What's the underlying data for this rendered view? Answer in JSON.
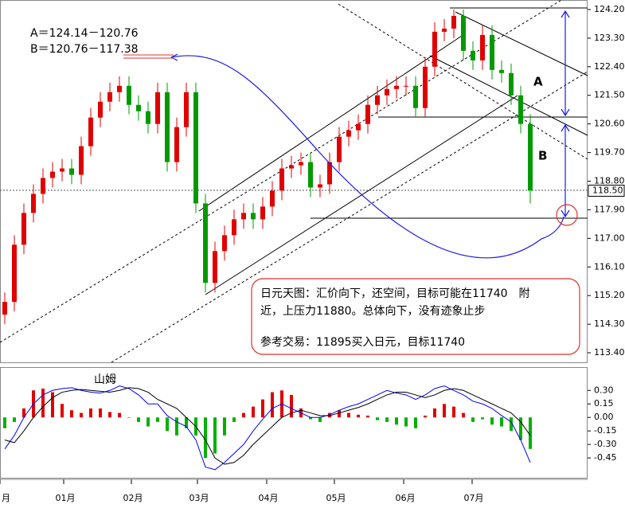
{
  "chart_data": [
    {
      "type": "candlestick",
      "up_color": "#e00000",
      "down_color": "#009a00",
      "open": [
        114.6,
        115.0,
        116.8,
        117.8,
        118.4,
        118.9,
        119.1,
        119.2,
        119.0,
        119.9,
        120.8,
        121.3,
        121.6,
        121.8,
        121.2,
        121.0,
        120.6,
        121.6,
        119.4,
        120.5,
        121.6,
        118.1,
        115.6,
        116.6,
        117.1,
        117.6,
        117.8,
        117.6,
        118.0,
        118.5,
        119.2,
        119.3,
        119.4,
        118.6,
        118.7,
        119.4,
        120.2,
        120.4,
        120.6,
        121.2,
        121.5,
        121.7,
        121.8,
        121.8,
        121.1,
        122.4,
        123.5,
        123.6,
        124.0,
        122.9,
        122.6,
        123.4,
        122.3,
        122.2,
        121.5,
        120.6
      ],
      "high": [
        115.3,
        117.1,
        118.1,
        118.7,
        119.2,
        119.4,
        119.5,
        119.5,
        120.2,
        121.1,
        121.6,
        121.9,
        122.1,
        122.1,
        121.5,
        121.3,
        121.9,
        121.9,
        120.8,
        121.9,
        121.9,
        118.4,
        116.9,
        117.4,
        117.9,
        118.1,
        118.1,
        118.3,
        118.8,
        119.5,
        119.6,
        119.7,
        119.7,
        119.0,
        119.7,
        120.5,
        120.7,
        120.9,
        121.5,
        121.8,
        122.0,
        122.1,
        122.1,
        122.1,
        122.7,
        123.8,
        123.9,
        124.2,
        124.2,
        123.2,
        123.7,
        123.7,
        122.6,
        122.5,
        121.8,
        120.9
      ],
      "low": [
        114.3,
        114.7,
        116.5,
        117.5,
        118.1,
        118.6,
        118.8,
        118.7,
        118.7,
        119.6,
        120.5,
        121.0,
        121.3,
        120.9,
        120.7,
        120.3,
        120.3,
        119.1,
        119.1,
        120.2,
        117.8,
        115.3,
        115.3,
        116.3,
        116.8,
        117.3,
        117.3,
        117.3,
        117.7,
        118.2,
        118.9,
        119.0,
        118.3,
        118.3,
        118.4,
        119.1,
        119.9,
        120.1,
        120.3,
        120.9,
        121.2,
        121.4,
        121.5,
        120.8,
        120.8,
        122.1,
        123.2,
        123.3,
        122.6,
        122.3,
        122.3,
        122.0,
        121.9,
        121.2,
        120.3,
        118.1
      ],
      "close": [
        115.0,
        116.8,
        117.8,
        118.4,
        118.9,
        119.1,
        119.2,
        119.0,
        119.9,
        120.8,
        121.3,
        121.6,
        121.8,
        121.2,
        121.0,
        120.6,
        121.6,
        119.4,
        120.5,
        121.6,
        118.1,
        115.6,
        116.6,
        117.1,
        117.6,
        117.8,
        117.6,
        118.0,
        118.5,
        119.2,
        119.3,
        119.4,
        118.6,
        118.7,
        119.4,
        120.2,
        120.4,
        120.6,
        121.2,
        121.5,
        121.7,
        121.8,
        121.8,
        121.1,
        122.4,
        123.5,
        123.6,
        124.0,
        122.9,
        122.6,
        123.4,
        122.3,
        122.2,
        121.5,
        120.6,
        118.5
      ],
      "ylim": [
        113.1,
        124.5
      ],
      "yticks": [
        {
          "value": 124.2,
          "label": "124.20"
        },
        {
          "value": 123.3,
          "label": "123.30"
        },
        {
          "value": 122.4,
          "label": "122.40"
        },
        {
          "value": 121.5,
          "label": "121.50"
        },
        {
          "value": 120.6,
          "label": "120.60"
        },
        {
          "value": 119.7,
          "label": "119.70"
        },
        {
          "value": 118.8,
          "label": "118.80"
        },
        {
          "value": 117.9,
          "label": "117.90"
        },
        {
          "value": 117.0,
          "label": "117.00"
        },
        {
          "value": 116.1,
          "label": "116.10"
        },
        {
          "value": 115.2,
          "label": "115.20"
        },
        {
          "value": 114.3,
          "label": "114.30"
        },
        {
          "value": 113.4,
          "label": "113.40"
        }
      ],
      "last_price": {
        "value": 118.5,
        "label": "118.50"
      },
      "month_labels": [
        "月",
        "01月",
        "02月",
        "03月",
        "04月",
        "05月",
        "06月",
        "07月"
      ],
      "annotations": {
        "range_a": "A＝124.14－120.76",
        "range_b": "B＝120.76－117.38",
        "label_a": "A",
        "label_b": "B",
        "note_lines": [
          "日元天图：汇价向下，还空间，目标可能在11740　附",
          "近，上压力11880。总体向下，没有迹象止步",
          "参考交易：11895买入日元，目标11740"
        ]
      }
    },
    {
      "type": "macd",
      "title": "山姆",
      "positive_color": "#e00000",
      "negative_color": "#00b000",
      "series": [
        {
          "values": [
            -0.12,
            -0.05,
            0.1,
            0.3,
            0.32,
            0.28,
            0.15,
            0.08,
            0.05,
            0.1,
            0.1,
            0.06,
            0.05,
            0.0,
            -0.05,
            -0.1,
            -0.05,
            -0.15,
            -0.2,
            -0.12,
            -0.2,
            -0.45,
            -0.4,
            -0.2,
            -0.05,
            0.05,
            0.12,
            0.2,
            0.28,
            0.3,
            0.25,
            0.1,
            -0.02,
            -0.05,
            0.05,
            0.08,
            0.05,
            0.03,
            0.02,
            -0.03,
            -0.05,
            -0.08,
            -0.1,
            -0.12,
            0.02,
            0.1,
            0.15,
            0.12,
            0.05,
            -0.05,
            -0.02,
            -0.08,
            -0.1,
            -0.15,
            -0.25,
            -0.35
          ]
        },
        {
          "color": "#0000ff",
          "values": [
            -0.35,
            -0.2,
            0.0,
            0.15,
            0.25,
            0.3,
            0.32,
            0.33,
            0.3,
            0.28,
            0.27,
            0.3,
            0.35,
            0.32,
            0.25,
            0.15,
            0.15,
            0.02,
            -0.05,
            -0.1,
            -0.25,
            -0.55,
            -0.58,
            -0.5,
            -0.4,
            -0.3,
            -0.15,
            -0.02,
            0.1,
            0.15,
            0.1,
            0.05,
            0.0,
            0.0,
            0.03,
            0.08,
            0.12,
            0.15,
            0.2,
            0.25,
            0.3,
            0.27,
            0.25,
            0.2,
            0.25,
            0.32,
            0.35,
            0.3,
            0.25,
            0.18,
            0.15,
            0.1,
            0.02,
            -0.05,
            -0.25,
            -0.5
          ]
        },
        {
          "color": "#000000",
          "values": [
            -0.25,
            -0.28,
            -0.15,
            0.0,
            0.12,
            0.22,
            0.28,
            0.3,
            0.31,
            0.3,
            0.29,
            0.28,
            0.3,
            0.33,
            0.32,
            0.28,
            0.2,
            0.15,
            0.1,
            0.0,
            -0.1,
            -0.25,
            -0.45,
            -0.52,
            -0.5,
            -0.42,
            -0.3,
            -0.2,
            -0.1,
            0.0,
            0.05,
            0.08,
            0.05,
            0.02,
            0.02,
            0.05,
            0.08,
            0.11,
            0.15,
            0.2,
            0.25,
            0.28,
            0.28,
            0.25,
            0.22,
            0.25,
            0.3,
            0.32,
            0.3,
            0.25,
            0.2,
            0.15,
            0.1,
            0.05,
            -0.05,
            -0.2
          ]
        }
      ],
      "ylim": [
        -0.67,
        0.55
      ],
      "yticks": [
        {
          "value": 0.3,
          "label": "0.30"
        },
        {
          "value": 0.15,
          "label": "0.15"
        },
        {
          "value": 0.0,
          "label": "0.00"
        },
        {
          "value": -0.15,
          "label": "-0.15"
        },
        {
          "value": -0.3,
          "label": "-0.30"
        },
        {
          "value": -0.45,
          "label": "-0.45"
        }
      ]
    }
  ]
}
